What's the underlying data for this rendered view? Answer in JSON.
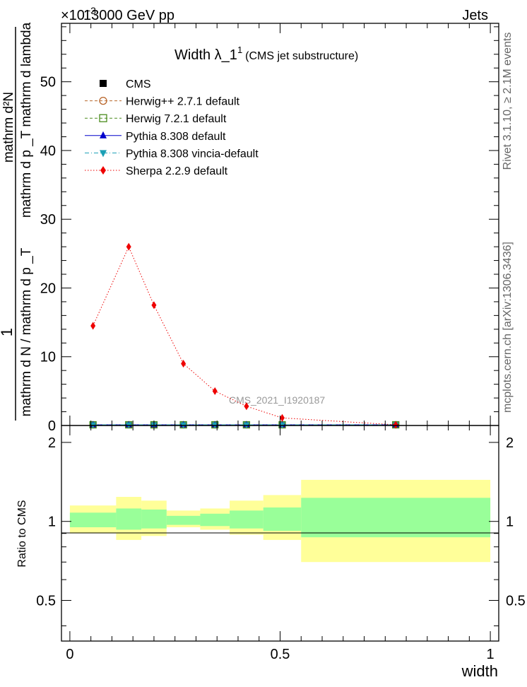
{
  "header": {
    "left": "13000 GeV pp",
    "right": "Jets",
    "exponent_label": "×10",
    "exponent_value": "−3"
  },
  "side_labels": {
    "rivet": "Rivet 3.1.10, ≥ 2.1M events",
    "mcplots": "mcplots.cern.ch [arXiv:1306.3436]"
  },
  "title": {
    "main": "Width λ_1",
    "superscript": "1",
    "sub": "(CMS jet substructure)"
  },
  "watermark": "CMS_2021_I1920187",
  "ylabel": {
    "numerator": "1",
    "denominator": "mathrm d N / mathrm d p _T",
    "right_top": "mathrm d²N",
    "right_bottom": "mathrm d p _T mathrm d lambda",
    "subscript": "T"
  },
  "ratio_ylabel": "Ratio to CMS",
  "xlabel": "width",
  "legend": [
    {
      "label": "CMS",
      "color": "#000000",
      "marker": "square-filled",
      "line": "none"
    },
    {
      "label": "Herwig++ 2.7.1 default",
      "color": "#b8652a",
      "marker": "circle-open",
      "line": "dashed"
    },
    {
      "label": "Herwig 7.2.1 default",
      "color": "#4a8c1c",
      "marker": "square-open",
      "line": "dashed"
    },
    {
      "label": "Pythia 8.308 default",
      "color": "#0000cc",
      "marker": "triangle-up",
      "line": "solid"
    },
    {
      "label": "Pythia 8.308 vincia-default",
      "color": "#1a9fb5",
      "marker": "triangle-down",
      "line": "dashdot"
    },
    {
      "label": "Sherpa 2.2.9 default",
      "color": "#ee0000",
      "marker": "diamond",
      "line": "dotted"
    }
  ],
  "chart_data": [
    {
      "type": "line",
      "xlim": [
        -0.02,
        1.02
      ],
      "ylim": [
        0,
        0.0585
      ],
      "yticks": [
        0,
        10,
        20,
        30,
        40,
        50
      ],
      "ytick_labels": [
        "0",
        "10",
        "20",
        "30",
        "40",
        "50"
      ],
      "y_scale_exponent": -3,
      "xticks": [
        0,
        0.5,
        1
      ],
      "xtick_labels": [
        "0",
        "0.5",
        "1"
      ],
      "x": [
        0.055,
        0.14,
        0.2,
        0.27,
        0.345,
        0.42,
        0.505,
        0.775
      ],
      "series": [
        {
          "name": "CMS",
          "values": [
            0.0001,
            0.0001,
            0.0001,
            0.0001,
            0.0001,
            0.0001,
            0.0001,
            0.0001
          ]
        },
        {
          "name": "Herwig++ 2.7.1 default",
          "values": [
            0.0001,
            0.0001,
            0.0001,
            0.0001,
            0.0001,
            0.0001,
            0.0001,
            0.0001
          ]
        },
        {
          "name": "Herwig 7.2.1 default",
          "values": [
            0.0001,
            0.0001,
            0.0001,
            0.0001,
            0.0001,
            0.0001,
            0.0001,
            0.0001
          ]
        },
        {
          "name": "Pythia 8.308 default",
          "values": [
            0.0001,
            0.0001,
            0.0001,
            0.0001,
            0.0001,
            0.0001,
            0.0001,
            0.0001
          ]
        },
        {
          "name": "Pythia 8.308 vincia-default",
          "values": [
            0.0001,
            0.0001,
            0.0001,
            0.0001,
            0.0001,
            0.0001,
            0.0001,
            0.0001
          ]
        },
        {
          "name": "Sherpa 2.2.9 default",
          "values": [
            0.0145,
            0.026,
            0.0175,
            0.009,
            0.005,
            0.0028,
            0.0011,
            0.0001
          ]
        }
      ]
    },
    {
      "type": "area",
      "title": "",
      "ylabel": "Ratio to CMS",
      "xlabel": "width",
      "xlim": [
        -0.02,
        1.02
      ],
      "ylim": [
        0.35,
        2.32
      ],
      "yticks": [
        0.5,
        1,
        2
      ],
      "ytick_labels": [
        "0.5",
        "1",
        "2"
      ],
      "y_scale": "log",
      "bins": [
        {
          "x0": 0.0,
          "x1": 0.11,
          "inner": [
            0.95,
            1.08
          ],
          "outer": [
            0.9,
            1.15
          ]
        },
        {
          "x0": 0.11,
          "x1": 0.17,
          "inner": [
            0.93,
            1.12
          ],
          "outer": [
            0.85,
            1.24
          ]
        },
        {
          "x0": 0.17,
          "x1": 0.23,
          "inner": [
            0.94,
            1.11
          ],
          "outer": [
            0.88,
            1.2
          ]
        },
        {
          "x0": 0.23,
          "x1": 0.31,
          "inner": [
            0.97,
            1.05
          ],
          "outer": [
            0.95,
            1.1
          ]
        },
        {
          "x0": 0.31,
          "x1": 0.38,
          "inner": [
            0.96,
            1.07
          ],
          "outer": [
            0.93,
            1.12
          ]
        },
        {
          "x0": 0.38,
          "x1": 0.46,
          "inner": [
            0.94,
            1.1
          ],
          "outer": [
            0.89,
            1.2
          ]
        },
        {
          "x0": 0.46,
          "x1": 0.55,
          "inner": [
            0.92,
            1.13
          ],
          "outer": [
            0.85,
            1.26
          ]
        },
        {
          "x0": 0.55,
          "x1": 1.0,
          "inner": [
            0.87,
            1.23
          ],
          "outer": [
            0.7,
            1.44
          ]
        }
      ],
      "colors": {
        "inner": "#99ff99",
        "outer": "#ffff99"
      }
    }
  ]
}
